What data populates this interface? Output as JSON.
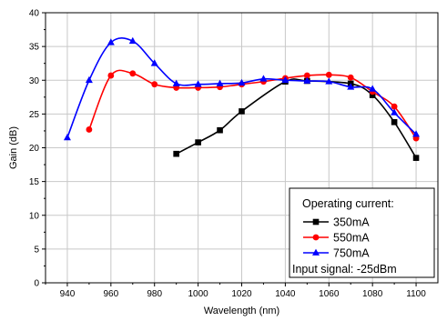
{
  "chart_data": {
    "type": "line",
    "xlabel": "Wavelength (nm)",
    "ylabel": "Gain (dB)",
    "xlim": [
      930,
      1110
    ],
    "ylim": [
      0,
      40
    ],
    "x_ticks": [
      940,
      960,
      980,
      1000,
      1020,
      1040,
      1060,
      1080,
      1100
    ],
    "y_ticks": [
      0,
      5,
      10,
      15,
      20,
      25,
      30,
      35,
      40
    ],
    "grid": true,
    "legend": {
      "title": "Operating current:",
      "footer": "Input signal: -25dBm",
      "position": "bottom-right"
    },
    "series": [
      {
        "name": "350mA",
        "color": "#000000",
        "marker": "square",
        "x": [
          990,
          1000,
          1010,
          1020,
          1040,
          1050,
          1070,
          1080,
          1090,
          1100
        ],
        "y": [
          19.1,
          20.8,
          22.6,
          25.4,
          29.8,
          29.9,
          29.5,
          27.8,
          23.8,
          18.5
        ]
      },
      {
        "name": "550mA",
        "color": "#ff0000",
        "marker": "circle",
        "x": [
          950,
          960,
          970,
          980,
          990,
          1000,
          1010,
          1020,
          1030,
          1040,
          1050,
          1060,
          1070,
          1080,
          1090,
          1100
        ],
        "y": [
          22.7,
          30.7,
          31.0,
          29.4,
          28.9,
          28.9,
          29.0,
          29.4,
          29.8,
          30.3,
          30.7,
          30.8,
          30.4,
          28.3,
          26.1,
          21.4
        ]
      },
      {
        "name": "750mA",
        "color": "#0000ff",
        "marker": "triangle",
        "x": [
          940,
          950,
          960,
          970,
          980,
          990,
          1000,
          1010,
          1020,
          1030,
          1040,
          1050,
          1060,
          1070,
          1080,
          1090,
          1100
        ],
        "y": [
          21.5,
          30.0,
          35.6,
          35.8,
          32.5,
          29.5,
          29.4,
          29.5,
          29.6,
          30.2,
          30.0,
          29.9,
          29.8,
          29.0,
          28.7,
          25.2,
          22.0
        ]
      }
    ]
  }
}
